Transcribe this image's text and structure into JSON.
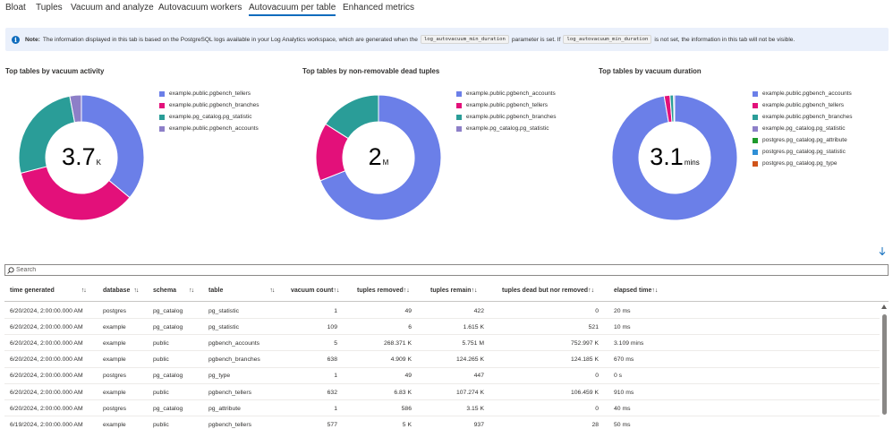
{
  "tabs": [
    {
      "label": "Bloat"
    },
    {
      "label": "Tuples"
    },
    {
      "label": "Vacuum and analyze"
    },
    {
      "label": "Autovacuum workers"
    },
    {
      "label": "Autovacuum per table"
    },
    {
      "label": "Enhanced metrics"
    }
  ],
  "info": {
    "note_label": "Note:",
    "text_1": "The information displayed in this tab is based on the PostgreSQL logs available in your Log Analytics workspace, which are generated when the",
    "code_1": "log_autovacuum_min_duration",
    "text_2": "parameter is set. If",
    "code_2": "log_autovacuum_min_duration",
    "text_3": "is not set, the information in this tab will not be visible."
  },
  "charts": [
    {
      "title": "Top tables by vacuum activity",
      "center_value": "3.7",
      "center_unit": "K",
      "slices": [
        {
          "label": "example.public.pgbench_tellers",
          "value": 36,
          "color": "#6b7fe8"
        },
        {
          "label": "example.public.pgbench_branches",
          "value": 35,
          "color": "#e3107a"
        },
        {
          "label": "example.pg_catalog.pg_statistic",
          "value": 26,
          "color": "#2a9d98"
        },
        {
          "label": "example.public.pgbench_accounts",
          "value": 3,
          "color": "#8d7fc8"
        }
      ]
    },
    {
      "title": "Top tables by non-removable dead tuples",
      "center_value": "2",
      "center_unit": "M",
      "slices": [
        {
          "label": "example.public.pgbench_accounts",
          "value": 69,
          "color": "#6b7fe8"
        },
        {
          "label": "example.public.pgbench_tellers",
          "value": 15,
          "color": "#e3107a"
        },
        {
          "label": "example.public.pgbench_branches",
          "value": 16,
          "color": "#2a9d98"
        },
        {
          "label": "example.pg_catalog.pg_statistic",
          "value": 0,
          "color": "#8d7fc8"
        }
      ]
    },
    {
      "title": "Top tables by vacuum duration",
      "center_value": "3.1",
      "center_unit": "mins",
      "slices": [
        {
          "label": "example.public.pgbench_accounts",
          "value": 97.3,
          "color": "#6b7fe8"
        },
        {
          "label": "example.public.pgbench_tellers",
          "value": 1.5,
          "color": "#e3107a"
        },
        {
          "label": "example.public.pgbench_branches",
          "value": 0.9,
          "color": "#2a9d98"
        },
        {
          "label": "example.pg_catalog.pg_statistic",
          "value": 0.3,
          "color": "#8d7fc8"
        },
        {
          "label": "postgres.pg_catalog.pg_attribute",
          "value": 0,
          "color": "#1e9a2c"
        },
        {
          "label": "postgres.pg_catalog.pg_statistic",
          "value": 0,
          "color": "#2f8fd6"
        },
        {
          "label": "postgres.pg_catalog.pg_type",
          "value": 0,
          "color": "#d0541a"
        }
      ]
    }
  ],
  "search": {
    "placeholder": "Search"
  },
  "table": {
    "columns": [
      {
        "label": "time generated",
        "sort": "↑↓"
      },
      {
        "label": "database",
        "sort": "↑↓"
      },
      {
        "label": "schema",
        "sort": "↑↓"
      },
      {
        "label": "table",
        "sort": "↑↓"
      },
      {
        "label": "vacuum count↑",
        "sort": "↓"
      },
      {
        "label": "tuples removed↑",
        "sort": "↓"
      },
      {
        "label": "tuples remain↑",
        "sort": "↓"
      },
      {
        "label": "tuples dead but nor removed↑",
        "sort": "↓"
      },
      {
        "label": "elapsed time↑",
        "sort": "↓"
      }
    ],
    "rows": [
      [
        "6/20/2024, 2:00:00.000 AM",
        "postgres",
        "pg_catalog",
        "pg_statistic",
        "1",
        "49",
        "422",
        "0",
        "20 ms"
      ],
      [
        "6/20/2024, 2:00:00.000 AM",
        "example",
        "pg_catalog",
        "pg_statistic",
        "109",
        "6",
        "1.615 K",
        "521",
        "10 ms"
      ],
      [
        "6/20/2024, 2:00:00.000 AM",
        "example",
        "public",
        "pgbench_accounts",
        "5",
        "268.371 K",
        "5.751 M",
        "752.997 K",
        "3.109 mins"
      ],
      [
        "6/20/2024, 2:00:00.000 AM",
        "example",
        "public",
        "pgbench_branches",
        "638",
        "4.909 K",
        "124.265 K",
        "124.185 K",
        "670 ms"
      ],
      [
        "6/20/2024, 2:00:00.000 AM",
        "postgres",
        "pg_catalog",
        "pg_type",
        "1",
        "49",
        "447",
        "0",
        "0 s"
      ],
      [
        "6/20/2024, 2:00:00.000 AM",
        "example",
        "public",
        "pgbench_tellers",
        "632",
        "6.83 K",
        "107.274 K",
        "106.459 K",
        "910 ms"
      ],
      [
        "6/20/2024, 2:00:00.000 AM",
        "postgres",
        "pg_catalog",
        "pg_attribute",
        "1",
        "586",
        "3.15 K",
        "0",
        "40 ms"
      ],
      [
        "6/19/2024, 2:00:00.000 AM",
        "example",
        "public",
        "pgbench_tellers",
        "577",
        "5 K",
        "937",
        "28",
        "50 ms"
      ]
    ]
  }
}
